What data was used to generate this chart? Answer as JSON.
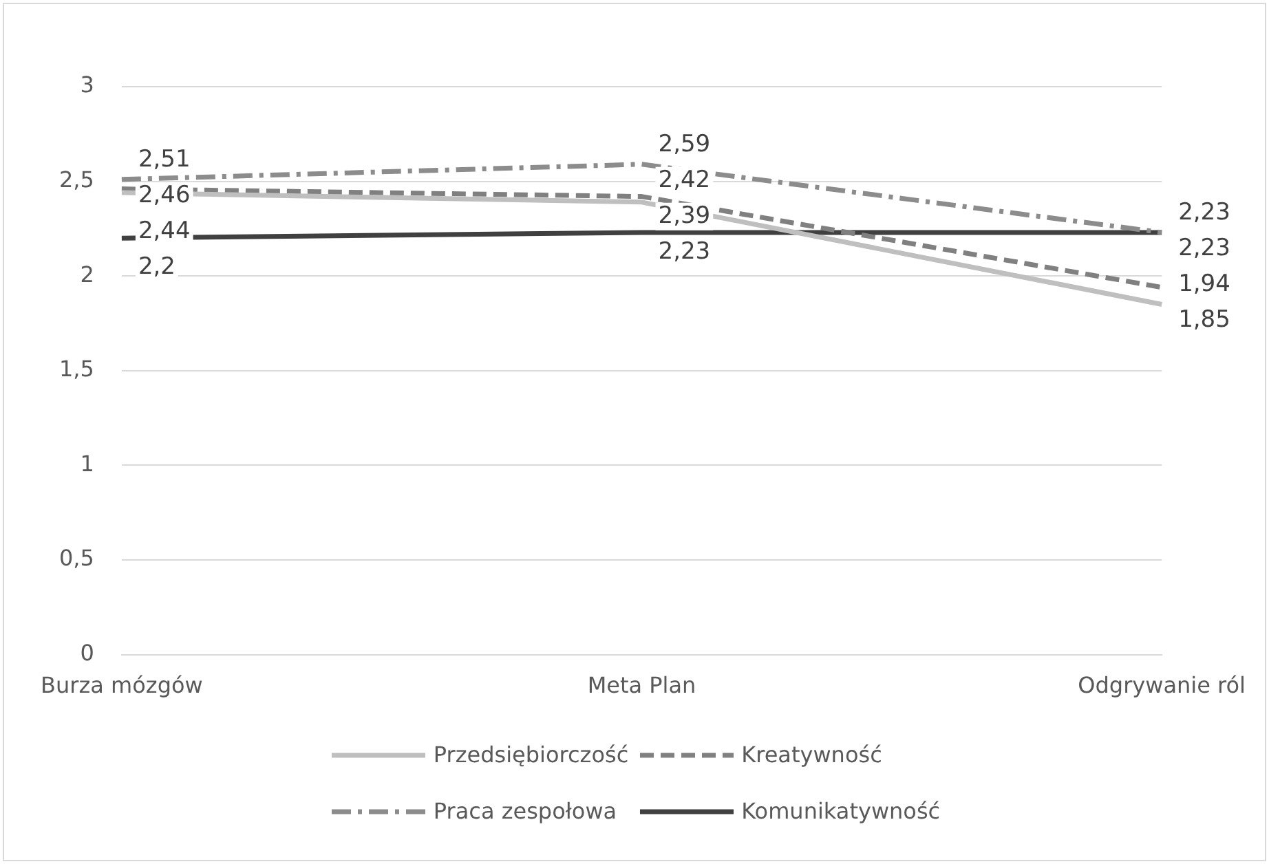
{
  "chart_data": {
    "type": "line",
    "categories": [
      "Burza mózgów",
      "Meta Plan",
      "Odgrywanie ról"
    ],
    "series": [
      {
        "name": "Przedsiębiorczość",
        "color": "#bfbfbf",
        "line_style": "solid",
        "values": [
          2.44,
          2.39,
          1.85
        ],
        "value_labels": [
          "2,44",
          "2,39",
          "1,85"
        ]
      },
      {
        "name": "Kreatywność",
        "color": "#808080",
        "line_style": "dashed",
        "values": [
          2.46,
          2.42,
          1.94
        ],
        "value_labels": [
          "2,46",
          "2,42",
          "1,94"
        ]
      },
      {
        "name": "Praca zespołowa",
        "color": "#8c8c8c",
        "line_style": "dashdot",
        "values": [
          2.51,
          2.59,
          2.23
        ],
        "value_labels": [
          "2,51",
          "2,59",
          "2,23"
        ]
      },
      {
        "name": "Komunikatywność",
        "color": "#404040",
        "line_style": "solid",
        "values": [
          2.2,
          2.23,
          2.23
        ],
        "value_labels": [
          "2,2",
          "2,23",
          "2,23"
        ]
      }
    ],
    "ylim": [
      0,
      3
    ],
    "yticks": [
      0,
      {
        "value": 0.5,
        "label": "0,5"
      },
      1,
      {
        "value": 1.5,
        "label": "1,5"
      },
      2,
      {
        "value": 2.5,
        "label": "2,5"
      },
      3
    ],
    "grid": "y",
    "legend": "bottom",
    "marker": "none"
  }
}
